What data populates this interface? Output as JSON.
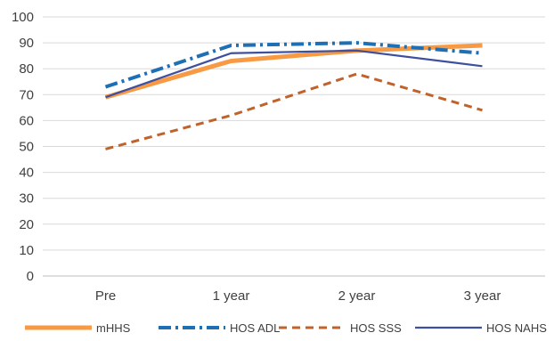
{
  "chart_data": {
    "type": "line",
    "categories": [
      "Pre",
      "1 year",
      "2 year",
      "3 year"
    ],
    "ylim": [
      0,
      100
    ],
    "yticks": [
      0,
      10,
      20,
      30,
      40,
      50,
      60,
      70,
      80,
      90,
      100
    ],
    "grid": true,
    "legend_position": "bottom",
    "series": [
      {
        "name": "mHHS",
        "values": [
          69,
          83,
          87,
          89
        ],
        "color": "#f79a43",
        "style": "solid-thick"
      },
      {
        "name": "HOS ADL",
        "values": [
          73,
          89,
          90,
          86
        ],
        "color": "#1f6fb5",
        "style": "dash-dot"
      },
      {
        "name": "HOS SSS",
        "values": [
          49,
          62,
          78,
          64
        ],
        "color": "#c0622b",
        "style": "dashed"
      },
      {
        "name": "HOS NAHS",
        "values": [
          69,
          86,
          87,
          81
        ],
        "color": "#3d4f9e",
        "style": "solid-thin"
      }
    ]
  }
}
